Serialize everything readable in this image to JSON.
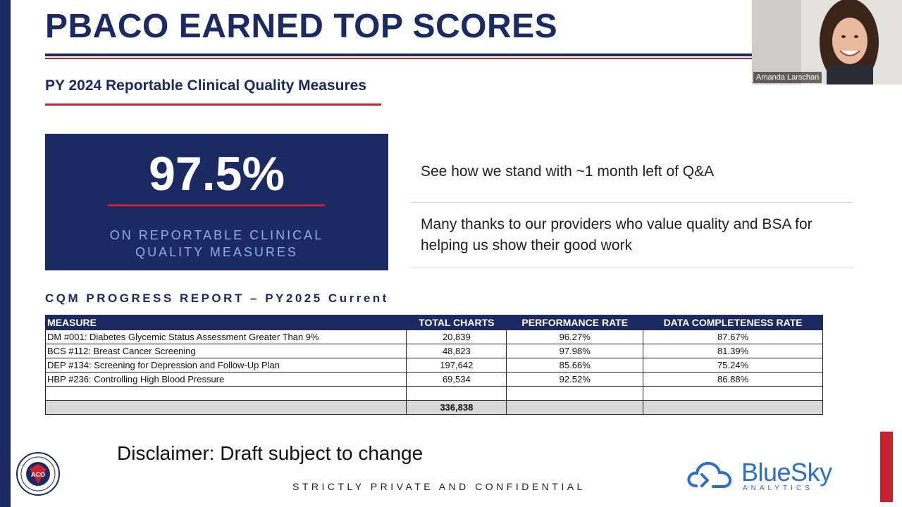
{
  "slide": {
    "title": "PBACO EARNED TOP SCORES",
    "subtitle": "PY 2024 Reportable Clinical Quality Measures",
    "stat": {
      "value": "97.5%",
      "caption": "ON REPORTABLE CLINICAL QUALITY MEASURES"
    },
    "notes": [
      "See how we stand with ~1 month left of Q&A",
      "Many thanks to our providers who value quality and BSA for helping us show their good work"
    ],
    "section_heading": "CQM PROGRESS REPORT – PY2025 Current",
    "table": {
      "headers": [
        "MEASURE",
        "TOTAL CHARTS",
        "PERFORMANCE RATE",
        "DATA COMPLETENESS RATE"
      ],
      "rows": [
        [
          "DM #001: Diabetes Glycemic Status Assessment Greater Than 9%",
          "20,839",
          "96.27%",
          "87.67%"
        ],
        [
          "BCS #112: Breast Cancer Screening",
          "48,823",
          "97.98%",
          "81.39%"
        ],
        [
          "DEP #134: Screening for Depression and Follow-Up Plan",
          "197,642",
          "85.66%",
          "75.24%"
        ],
        [
          "HBP #236: Controlling High Blood Pressure",
          "69,534",
          "92.52%",
          "86.88%"
        ]
      ],
      "total": "336,838"
    },
    "disclaimer": "Disclaimer: Draft subject to change",
    "confidential": "STRICTLY PRIVATE AND CONFIDENTIAL",
    "brand": {
      "name": "BlueSky",
      "tagline": "ANALYTICS"
    },
    "aco_logo_text": "ACO"
  },
  "video": {
    "speaker_name": "Amanda Larschan"
  },
  "colors": {
    "navy": "#1b2a63",
    "red": "#c8202f",
    "caption_blue": "#8fb0e0",
    "brand_blue": "#2a6fc9",
    "total_row_gray": "#d9d9d9"
  },
  "icons": {
    "aco_logo": "aco-seal-icon",
    "bluesky_logo": "cloud-icon"
  }
}
